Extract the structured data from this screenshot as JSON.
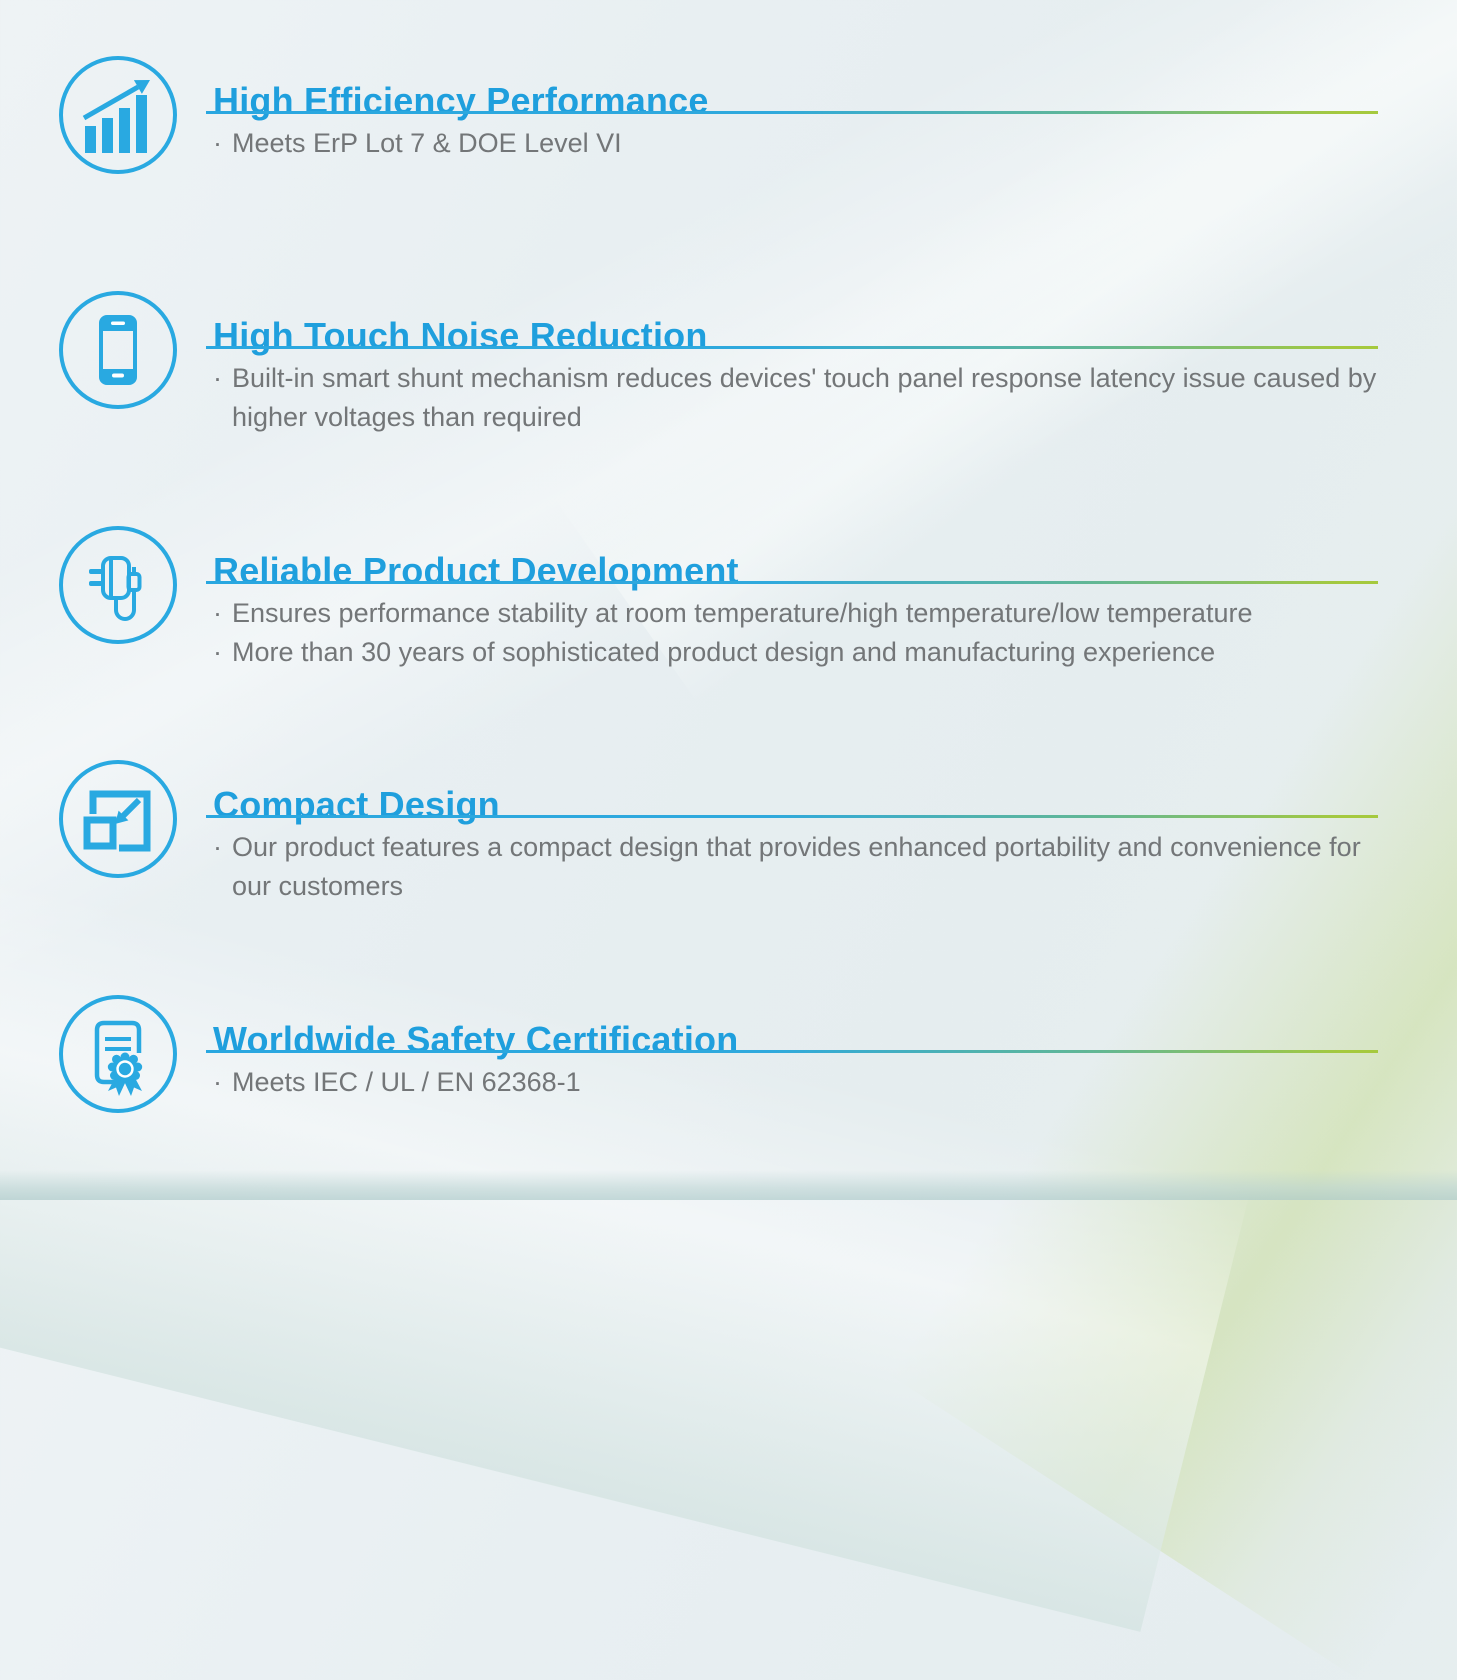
{
  "bullet_char": "·",
  "colors": {
    "heading_blue": "#1f9fdd",
    "icon_blue": "#29a9e1",
    "underline_blue": "#29a7e0",
    "underline_green": "#a5c93e",
    "body_gray": "#737678"
  },
  "sections": [
    {
      "icon": "bar-chart-growth-icon",
      "title": "High Efficiency Performance",
      "bullets": [
        "Meets ErP Lot 7 & DOE Level VI"
      ]
    },
    {
      "icon": "smartphone-icon",
      "title": "High Touch Noise Reduction",
      "bullets": [
        "Built-in smart shunt mechanism reduces devices' touch panel response latency issue caused by higher voltages than required"
      ]
    },
    {
      "icon": "power-adapter-icon",
      "title": "Reliable Product Development",
      "bullets": [
        "Ensures performance stability at room temperature/high temperature/low temperature",
        "More than 30 years of sophisticated product design and manufacturing experience"
      ]
    },
    {
      "icon": "compact-resize-icon",
      "title": "Compact Design",
      "bullets": [
        "Our product features a compact design that provides enhanced portability and convenience for our customers"
      ]
    },
    {
      "icon": "certificate-icon",
      "title": "Worldwide Safety Certification",
      "bullets": [
        "Meets IEC / UL / EN 62368-1"
      ]
    }
  ]
}
